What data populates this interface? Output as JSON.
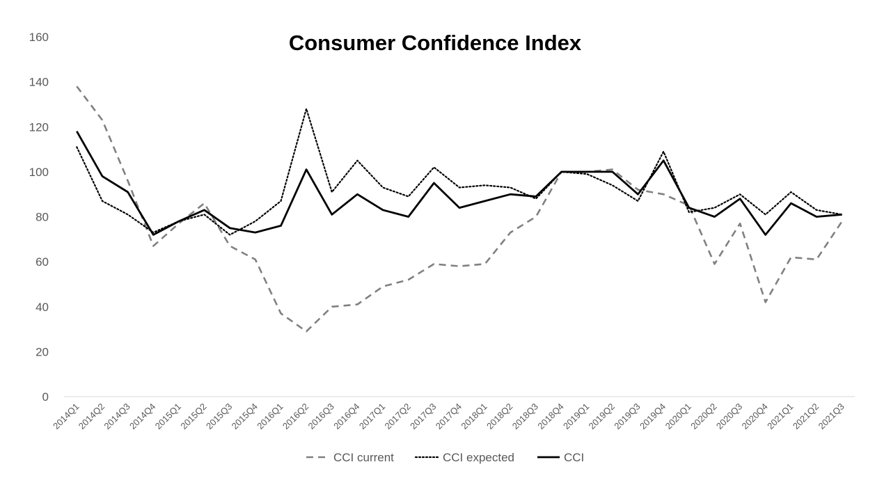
{
  "chart_data": {
    "type": "line",
    "title": "Consumer Confidence Index",
    "xlabel": "",
    "ylabel": "",
    "ylim": [
      0,
      160
    ],
    "yticks": [
      0,
      20,
      40,
      60,
      80,
      100,
      120,
      140,
      160
    ],
    "grid": false,
    "legend_position": "bottom",
    "categories": [
      "2014Q1",
      "2014Q2",
      "2014Q3",
      "2014Q4",
      "2015Q1",
      "2015Q2",
      "2015Q3",
      "2015Q4",
      "2016Q1",
      "2016Q2",
      "2016Q3",
      "2016Q4",
      "2017Q1",
      "2017Q2",
      "2017Q3",
      "2017Q4",
      "2018Q1",
      "2018Q2",
      "2018Q3",
      "2018Q4",
      "2019Q1",
      "2019Q2",
      "2019Q3",
      "2019Q4",
      "2020Q1",
      "2020Q2",
      "2020Q3",
      "2020Q4",
      "2021Q1",
      "2021Q2",
      "2021Q3"
    ],
    "series": [
      {
        "name": "CCI current",
        "style": "dashed",
        "color": "#808080",
        "values": [
          138,
          123,
          96,
          67,
          77,
          86,
          67,
          61,
          37,
          29,
          40,
          41,
          49,
          52,
          59,
          58,
          59,
          73,
          80,
          100,
          100,
          101,
          92,
          90,
          85,
          59,
          77,
          42,
          62,
          61,
          78
        ]
      },
      {
        "name": "CCI expected",
        "style": "dotted",
        "color": "#000000",
        "values": [
          111,
          87,
          81,
          73,
          78,
          81,
          72,
          78,
          87,
          128,
          91,
          105,
          93,
          89,
          102,
          93,
          94,
          93,
          88,
          100,
          99,
          94,
          87,
          109,
          82,
          84,
          90,
          81,
          91,
          83,
          81
        ]
      },
      {
        "name": "CCI",
        "style": "solid",
        "color": "#000000",
        "values": [
          118,
          98,
          91,
          72,
          78,
          83,
          75,
          73,
          76,
          101,
          81,
          90,
          83,
          80,
          95,
          84,
          87,
          90,
          89,
          100,
          100,
          100,
          90,
          105,
          84,
          80,
          88,
          72,
          86,
          80,
          81
        ]
      }
    ]
  }
}
